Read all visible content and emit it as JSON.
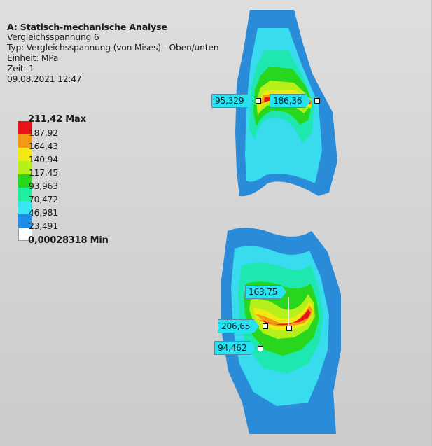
{
  "info": {
    "title": "A: Statisch-mechanische Analyse",
    "result_name": "Vergleichsspannung 6",
    "type_line": "Typ: Vergleichsspannung (von Mises) - Oben/unten",
    "unit_line": "Einheit: MPa",
    "time_line": "Zeit: 1",
    "date_line": "09.08.2021 12:47"
  },
  "legend": {
    "max_label": "211,42 Max",
    "min_label": "0,00028318 Min",
    "levels": [
      "187,92",
      "164,43",
      "140,94",
      "117,45",
      "93,963",
      "70,472",
      "46,981",
      "23,491"
    ],
    "colors": [
      "#e8141b",
      "#f39a14",
      "#f3e912",
      "#b6f01a",
      "#28d61e",
      "#1ef0a0",
      "#38e6f2",
      "#1c8ee8",
      "#ffffff"
    ]
  },
  "probes": {
    "upper_left": "95,329",
    "upper_right": "186,36",
    "lower_top": "163,75",
    "lower_mid": "206,65",
    "lower_bottom": "94,462"
  }
}
